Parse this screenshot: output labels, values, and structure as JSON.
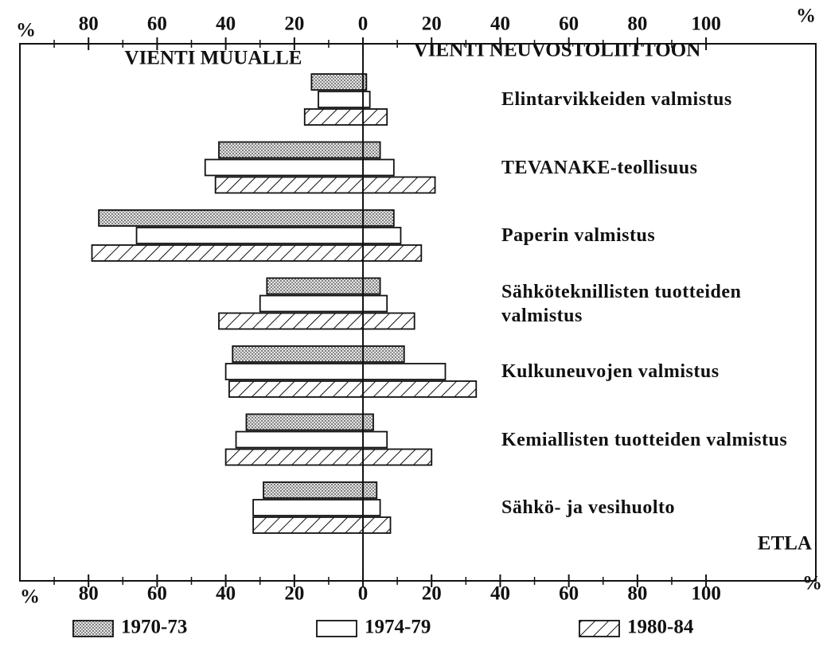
{
  "chart_data": {
    "type": "diverging_bar",
    "axis_unit": "%",
    "left_label": "VIENTI MUUALLE",
    "right_label": "VIENTI NEUVOSTOLIITTOON",
    "source": "ETLA",
    "categories": [
      "Elintarvikkeiden valmistus",
      "TEVANAKE-teollisuus",
      "Paperin valmistus",
      "Sähköteknillisten tuotteiden valmistus",
      "Kulkuneuvojen valmistus",
      "Kemiallisten tuotteiden valmistus",
      "Sähkö- ja vesihuolto"
    ],
    "series": [
      {
        "name": "1970-73",
        "pattern": "dots",
        "left": [
          -15,
          -42,
          -77,
          -28,
          -38,
          -34,
          -29
        ],
        "right": [
          1,
          5,
          9,
          5,
          12,
          3,
          4
        ]
      },
      {
        "name": "1974-79",
        "pattern": "plain",
        "left": [
          -13,
          -46,
          -66,
          -30,
          -40,
          -37,
          -32
        ],
        "right": [
          2,
          9,
          11,
          7,
          24,
          7,
          5
        ]
      },
      {
        "name": "1980-84",
        "pattern": "hatch",
        "left": [
          -17,
          -43,
          -79,
          -42,
          -39,
          -40,
          -32
        ],
        "right": [
          7,
          21,
          17,
          15,
          33,
          20,
          8
        ]
      }
    ],
    "xlim": [
      -100,
      132
    ],
    "xticks": [
      {
        "value": -80,
        "label": "80"
      },
      {
        "value": -60,
        "label": "60"
      },
      {
        "value": -40,
        "label": "40"
      },
      {
        "value": -20,
        "label": "20"
      },
      0,
      20,
      40,
      60,
      80,
      100
    ],
    "minor_xticks": [
      -90,
      -70,
      -50,
      -30,
      -10,
      10,
      30,
      50,
      70,
      90
    ]
  }
}
